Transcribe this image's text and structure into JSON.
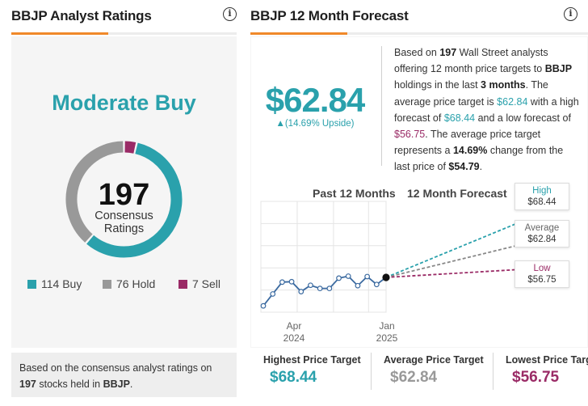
{
  "left_card": {
    "title": "BBJP Analyst Ratings",
    "rating": "Moderate Buy",
    "consensus_count": "197",
    "consensus_label_1": "Consensus",
    "consensus_label_2": "Ratings",
    "legend": [
      {
        "label": "114 Buy",
        "count": 114,
        "color": "#2aa1ac"
      },
      {
        "label": "76 Hold",
        "count": 76,
        "color": "#999999"
      },
      {
        "label": "7 Sell",
        "count": 7,
        "color": "#9a2b66"
      }
    ],
    "footer_pre": "Based on the consensus analyst ratings on",
    "footer_count": "197",
    "footer_mid": "stocks held in",
    "footer_ticker": "BBJP",
    "footer_end": "."
  },
  "right_card": {
    "title": "BBJP 12 Month Forecast",
    "price": "$62.84",
    "upside": "▲(14.69% Upside)",
    "desc": {
      "p1": "Based on",
      "analysts": "197",
      "p2": "Wall Street analysts offering 12 month price targets to",
      "ticker": "BBJP",
      "p3": "holdings in the last",
      "months": "3 months",
      "p4": ". The average price target is",
      "avg": "$62.84",
      "p5": "with a high forecast of",
      "high": "$68.44",
      "p6": "and a low forecast of",
      "low": "$56.75",
      "p7": ". The average price target represents a",
      "pct": "14.69%",
      "p8": "change from the last price of",
      "last": "$54.79",
      "p9": "."
    },
    "chart_head_past": "Past 12 Months",
    "chart_head_forecast": "12 Month Forecast",
    "ticks": [
      {
        "month": "Apr",
        "year": "2024"
      },
      {
        "month": "Jan",
        "year": "2025"
      }
    ],
    "tags": {
      "high_label": "High",
      "high_value": "$68.44",
      "avg_label": "Average",
      "avg_value": "$62.84",
      "low_label": "Low",
      "low_value": "$56.75"
    },
    "stats": [
      {
        "label": "Highest Price Target",
        "value": "$68.44",
        "color": "#2aa1ac"
      },
      {
        "label": "Average Price Target",
        "value": "$62.84",
        "color": "#999999"
      },
      {
        "label": "Lowest Price Targ",
        "value": "$56.75",
        "color": "#9a2b66"
      }
    ]
  },
  "chart_data": {
    "type": "line",
    "title": "BBJP 12 Month Forecast",
    "ylim": [
      46,
      74
    ],
    "history_x": [
      0,
      1,
      2,
      3,
      4,
      5,
      6,
      7,
      8,
      9,
      10,
      11,
      12,
      13
    ],
    "history": [
      47.6,
      50.6,
      53.6,
      53.7,
      51.2,
      52.8,
      52.0,
      52.0,
      54.6,
      55.1,
      52.7,
      55.0,
      53.0,
      54.79
    ],
    "forecast": {
      "high": 68.44,
      "average": 62.84,
      "low": 56.75
    },
    "colors": {
      "history": "#3b6aa0",
      "high": "#2aa1ac",
      "average": "#888888",
      "low": "#9a2b66",
      "grid": "#e4e4e4"
    }
  }
}
